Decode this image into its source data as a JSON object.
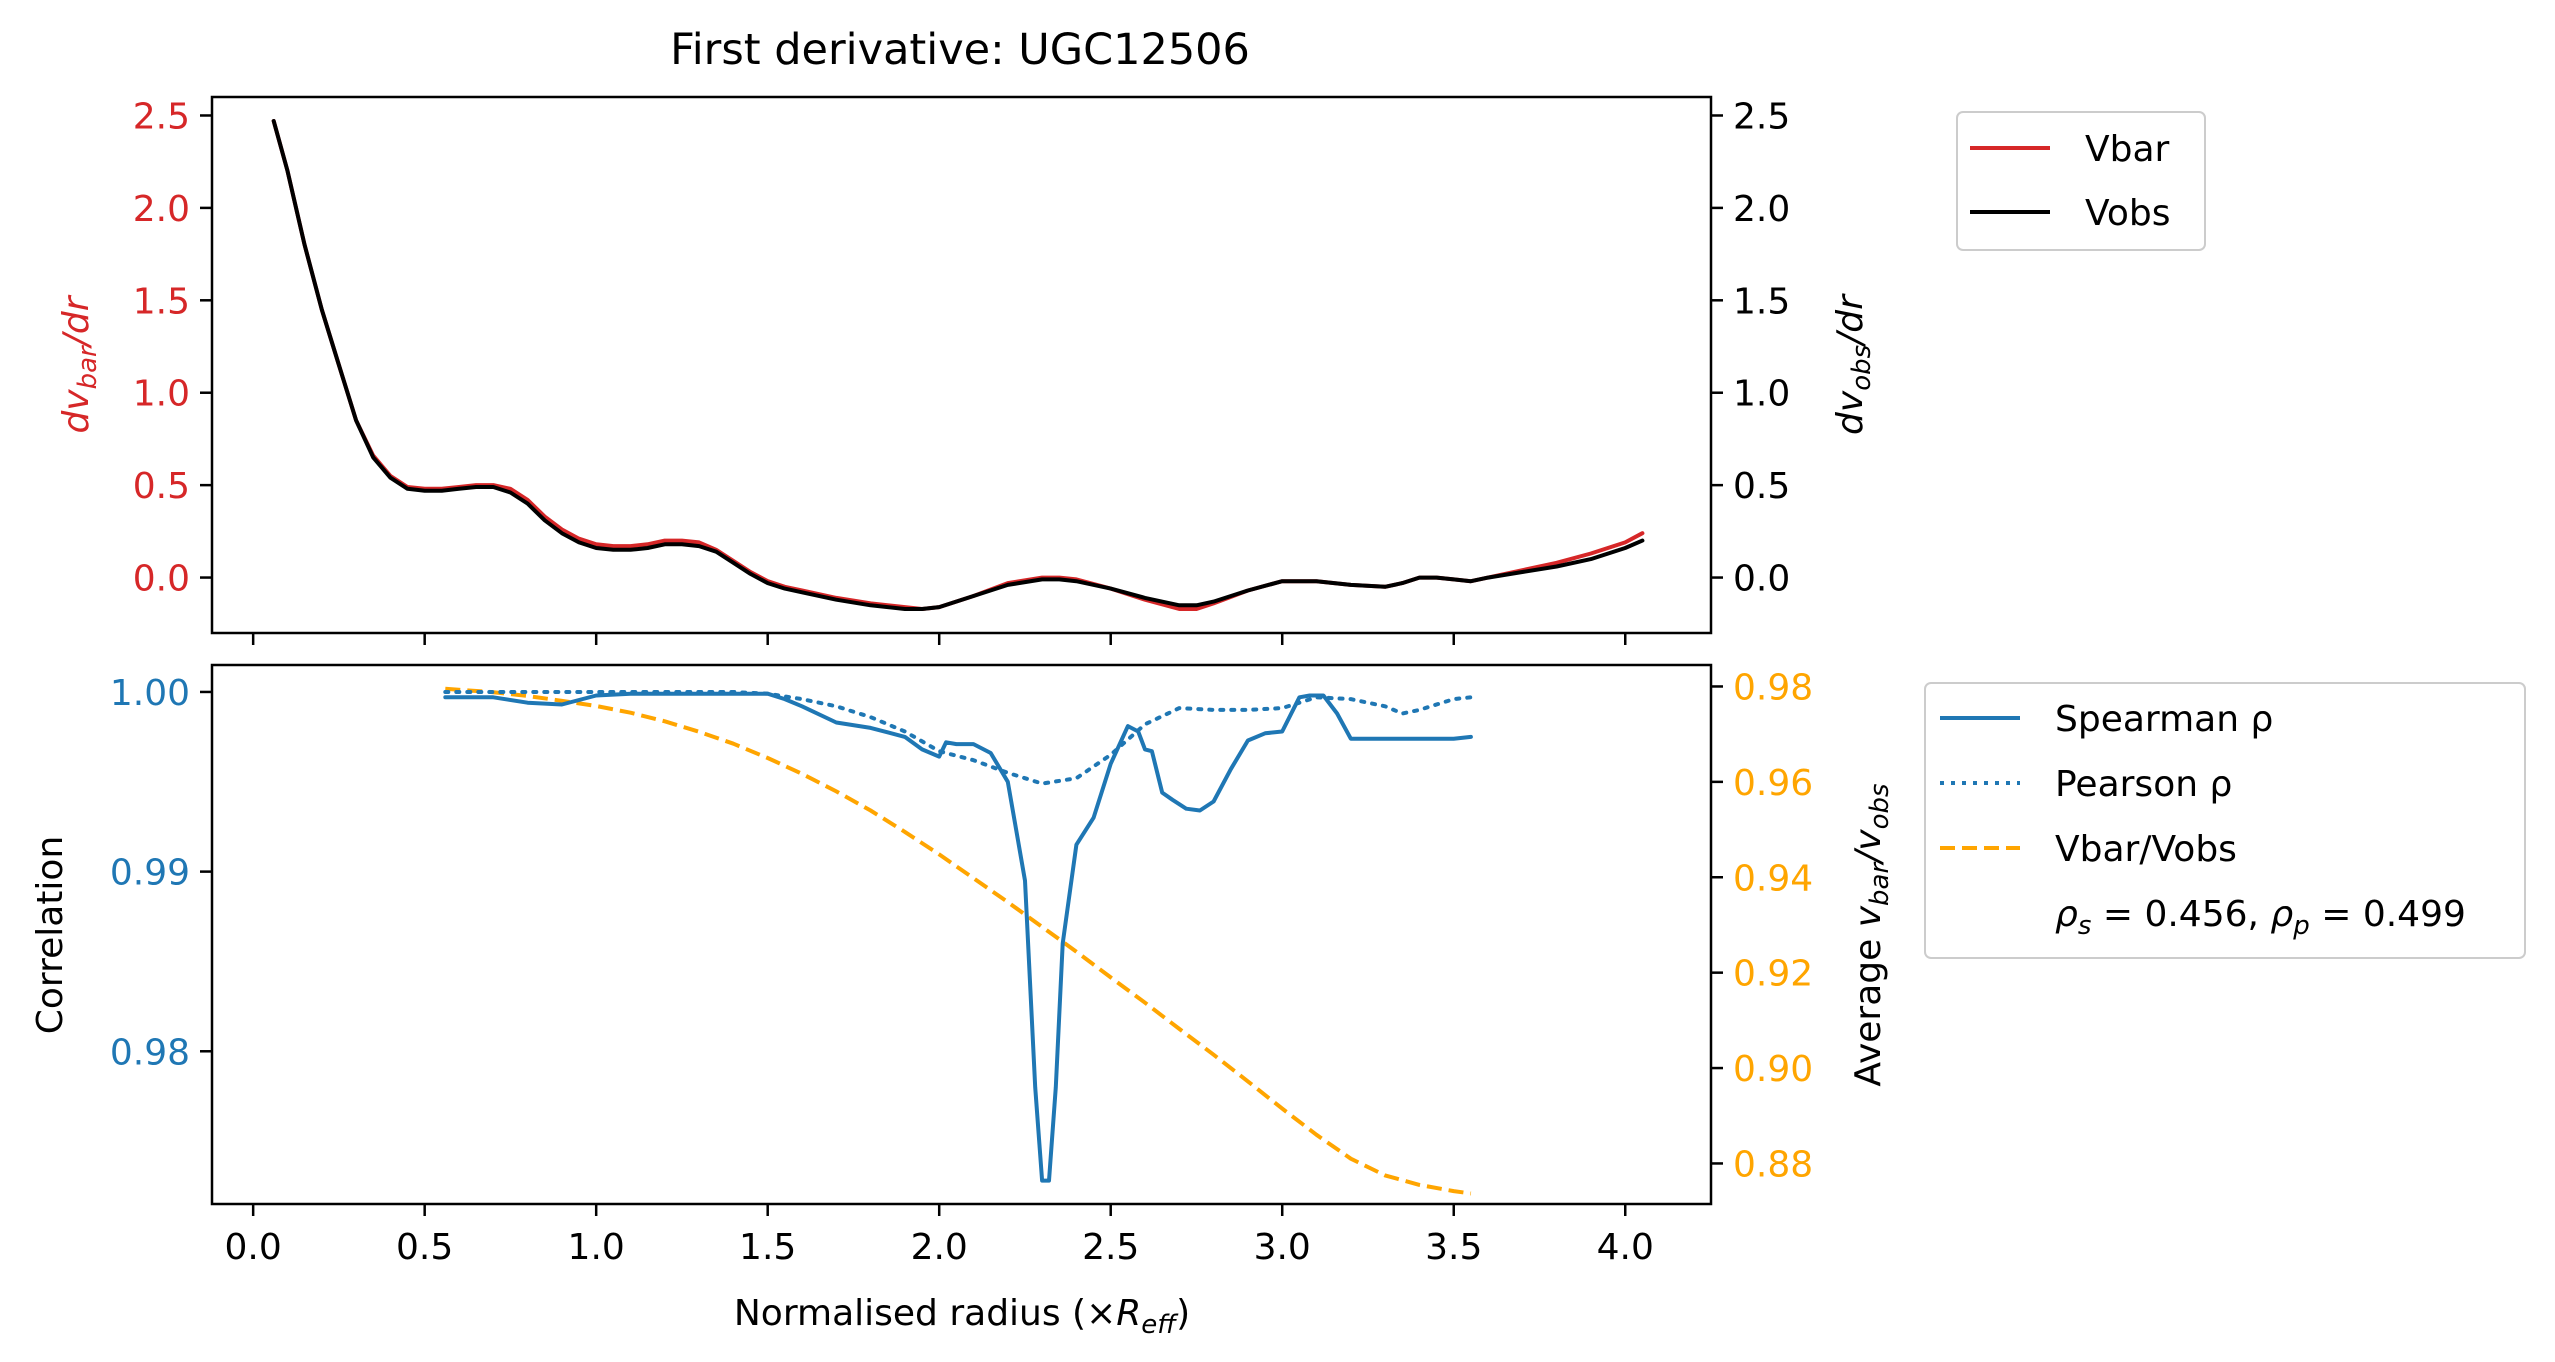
{
  "chart_data": [
    {
      "type": "line",
      "title": "First derivative: UGC12506",
      "xlim": [
        -0.12,
        4.25
      ],
      "ylim_left": [
        -0.3,
        2.6
      ],
      "ylim_right": [
        -0.3,
        2.6
      ],
      "y_ticks_left": [
        "2.5",
        "2.0",
        "1.5",
        "1.0",
        "0.5",
        "0.0"
      ],
      "y_ticks_right": [
        "2.5",
        "2.0",
        "1.5",
        "1.0",
        "0.5",
        "0.0"
      ],
      "ylabel_left": "dv_bar/dr",
      "ylabel_right": "dv_obs/dr",
      "left_axis_color": "#d62728",
      "legend_placement": "outside-upper-right",
      "series": [
        {
          "name": "Vbar",
          "color": "#d62728",
          "axis": "left",
          "x": [
            0.06,
            0.1,
            0.15,
            0.2,
            0.25,
            0.3,
            0.35,
            0.4,
            0.45,
            0.5,
            0.55,
            0.6,
            0.65,
            0.7,
            0.75,
            0.8,
            0.85,
            0.9,
            0.95,
            1.0,
            1.05,
            1.1,
            1.15,
            1.2,
            1.25,
            1.3,
            1.35,
            1.4,
            1.45,
            1.5,
            1.55,
            1.6,
            1.7,
            1.8,
            1.9,
            1.95,
            2.0,
            2.1,
            2.2,
            2.3,
            2.35,
            2.4,
            2.5,
            2.6,
            2.7,
            2.75,
            2.8,
            2.9,
            3.0,
            3.05,
            3.1,
            3.2,
            3.3,
            3.35,
            3.4,
            3.45,
            3.5,
            3.55,
            3.6,
            3.7,
            3.8,
            3.9,
            4.0,
            4.05
          ],
          "y": [
            2.47,
            2.2,
            1.8,
            1.45,
            1.15,
            0.85,
            0.66,
            0.55,
            0.49,
            0.48,
            0.48,
            0.49,
            0.5,
            0.5,
            0.48,
            0.42,
            0.33,
            0.26,
            0.21,
            0.18,
            0.17,
            0.17,
            0.18,
            0.2,
            0.2,
            0.19,
            0.15,
            0.09,
            0.03,
            -0.02,
            -0.05,
            -0.07,
            -0.11,
            -0.14,
            -0.16,
            -0.17,
            -0.16,
            -0.1,
            -0.03,
            0.0,
            0.0,
            -0.01,
            -0.06,
            -0.12,
            -0.17,
            -0.17,
            -0.14,
            -0.07,
            -0.02,
            -0.02,
            -0.02,
            -0.04,
            -0.05,
            -0.03,
            0.0,
            0.0,
            -0.01,
            -0.02,
            0.0,
            0.04,
            0.08,
            0.13,
            0.19,
            0.24
          ]
        },
        {
          "name": "Vobs",
          "color": "#000000",
          "axis": "right",
          "x": [
            0.06,
            0.1,
            0.15,
            0.2,
            0.25,
            0.3,
            0.35,
            0.4,
            0.45,
            0.5,
            0.55,
            0.6,
            0.65,
            0.7,
            0.75,
            0.8,
            0.85,
            0.9,
            0.95,
            1.0,
            1.05,
            1.1,
            1.15,
            1.2,
            1.25,
            1.3,
            1.35,
            1.4,
            1.45,
            1.5,
            1.55,
            1.6,
            1.7,
            1.8,
            1.9,
            1.95,
            2.0,
            2.1,
            2.2,
            2.3,
            2.35,
            2.4,
            2.5,
            2.6,
            2.7,
            2.75,
            2.8,
            2.9,
            3.0,
            3.05,
            3.1,
            3.2,
            3.3,
            3.35,
            3.4,
            3.45,
            3.5,
            3.55,
            3.6,
            3.7,
            3.8,
            3.9,
            4.0,
            4.05
          ],
          "y": [
            2.47,
            2.2,
            1.8,
            1.45,
            1.15,
            0.85,
            0.65,
            0.54,
            0.48,
            0.47,
            0.47,
            0.48,
            0.49,
            0.49,
            0.46,
            0.4,
            0.31,
            0.24,
            0.19,
            0.16,
            0.15,
            0.15,
            0.16,
            0.18,
            0.18,
            0.17,
            0.14,
            0.08,
            0.02,
            -0.03,
            -0.06,
            -0.08,
            -0.12,
            -0.15,
            -0.17,
            -0.17,
            -0.16,
            -0.1,
            -0.04,
            -0.01,
            -0.01,
            -0.02,
            -0.06,
            -0.11,
            -0.15,
            -0.15,
            -0.13,
            -0.07,
            -0.02,
            -0.02,
            -0.02,
            -0.04,
            -0.05,
            -0.03,
            0.0,
            0.0,
            -0.01,
            -0.02,
            0.0,
            0.03,
            0.06,
            0.1,
            0.16,
            0.2
          ]
        }
      ]
    },
    {
      "type": "line",
      "xlabel": "Normalised radius (×R_eff)",
      "xlim": [
        -0.12,
        4.25
      ],
      "x_ticks": [
        "0.0",
        "0.5",
        "1.0",
        "1.5",
        "2.0",
        "2.5",
        "3.0",
        "3.5",
        "4.0"
      ],
      "ylim_left": [
        0.9715,
        1.0015
      ],
      "ylim_right": [
        0.8715,
        0.9845
      ],
      "y_ticks_left": [
        "1.00",
        "0.99",
        "0.98"
      ],
      "y_ticks_right": [
        "0.98",
        "0.96",
        "0.94",
        "0.92",
        "0.90",
        "0.88"
      ],
      "ylabel_left": "Correlation",
      "ylabel_right": "Average v_bar/v_obs",
      "left_axis_color": "#1f77b4",
      "right_axis_color": "#ffa500",
      "legend_placement": "outside-right",
      "annotation": "ρ_s = 0.456, ρ_p = 0.499",
      "series": [
        {
          "name": "Spearman ρ",
          "color": "#1f77b4",
          "style": "solid",
          "axis": "left",
          "x": [
            0.56,
            0.7,
            0.8,
            0.9,
            1.0,
            1.1,
            1.2,
            1.3,
            1.4,
            1.5,
            1.55,
            1.6,
            1.7,
            1.8,
            1.9,
            1.95,
            2.0,
            2.02,
            2.05,
            2.1,
            2.15,
            2.2,
            2.25,
            2.28,
            2.3,
            2.32,
            2.34,
            2.36,
            2.4,
            2.45,
            2.5,
            2.55,
            2.58,
            2.6,
            2.62,
            2.65,
            2.68,
            2.72,
            2.76,
            2.8,
            2.85,
            2.9,
            2.95,
            3.0,
            3.05,
            3.08,
            3.12,
            3.16,
            3.2,
            3.3,
            3.4,
            3.5,
            3.55
          ],
          "y": [
            0.9997,
            0.9997,
            0.9994,
            0.9993,
            0.9998,
            0.9999,
            0.9999,
            0.9999,
            0.9999,
            0.9999,
            0.9996,
            0.9992,
            0.9983,
            0.998,
            0.9975,
            0.9968,
            0.9964,
            0.9972,
            0.9971,
            0.9971,
            0.9966,
            0.995,
            0.9895,
            0.978,
            0.9728,
            0.9728,
            0.978,
            0.986,
            0.9915,
            0.993,
            0.996,
            0.9981,
            0.9978,
            0.9968,
            0.9967,
            0.9944,
            0.994,
            0.9935,
            0.9934,
            0.9939,
            0.9957,
            0.9973,
            0.9977,
            0.9978,
            0.9997,
            0.9998,
            0.9998,
            0.9988,
            0.9974,
            0.9974,
            0.9974,
            0.9974,
            0.9975
          ]
        },
        {
          "name": "Pearson ρ",
          "color": "#1f77b4",
          "style": "dotted",
          "axis": "left",
          "x": [
            0.56,
            0.8,
            1.0,
            1.2,
            1.4,
            1.5,
            1.6,
            1.7,
            1.8,
            1.9,
            2.0,
            2.1,
            2.2,
            2.3,
            2.4,
            2.5,
            2.6,
            2.7,
            2.8,
            2.9,
            3.0,
            3.1,
            3.2,
            3.3,
            3.35,
            3.4,
            3.5,
            3.55
          ],
          "y": [
            1.0,
            1.0,
            1.0,
            1.0,
            1.0,
            0.9999,
            0.9996,
            0.9992,
            0.9986,
            0.9978,
            0.9967,
            0.9962,
            0.9955,
            0.9949,
            0.9952,
            0.9965,
            0.9982,
            0.9991,
            0.999,
            0.999,
            0.9991,
            0.9997,
            0.9996,
            0.9992,
            0.9988,
            0.999,
            0.9996,
            0.9997
          ]
        },
        {
          "name": "Vbar/Vobs",
          "color": "#ffa500",
          "style": "dashed",
          "axis": "right",
          "x": [
            0.56,
            0.7,
            0.8,
            0.9,
            1.0,
            1.1,
            1.2,
            1.3,
            1.4,
            1.5,
            1.6,
            1.7,
            1.8,
            1.9,
            2.0,
            2.1,
            2.2,
            2.3,
            2.4,
            2.5,
            2.6,
            2.7,
            2.8,
            2.9,
            3.0,
            3.1,
            3.2,
            3.3,
            3.4,
            3.5,
            3.55
          ],
          "y": [
            0.9795,
            0.9788,
            0.978,
            0.977,
            0.9759,
            0.9745,
            0.9727,
            0.9705,
            0.968,
            0.965,
            0.9617,
            0.958,
            0.954,
            0.9495,
            0.9448,
            0.9398,
            0.9348,
            0.9296,
            0.9244,
            0.919,
            0.9137,
            0.9082,
            0.9028,
            0.8972,
            0.8915,
            0.886,
            0.881,
            0.8775,
            0.8755,
            0.8742,
            0.8737
          ]
        }
      ]
    }
  ],
  "legends": {
    "top": [
      "Vbar",
      "Vobs"
    ],
    "bottom": [
      "Spearman ρ",
      "Pearson ρ",
      "Vbar/Vobs"
    ]
  }
}
